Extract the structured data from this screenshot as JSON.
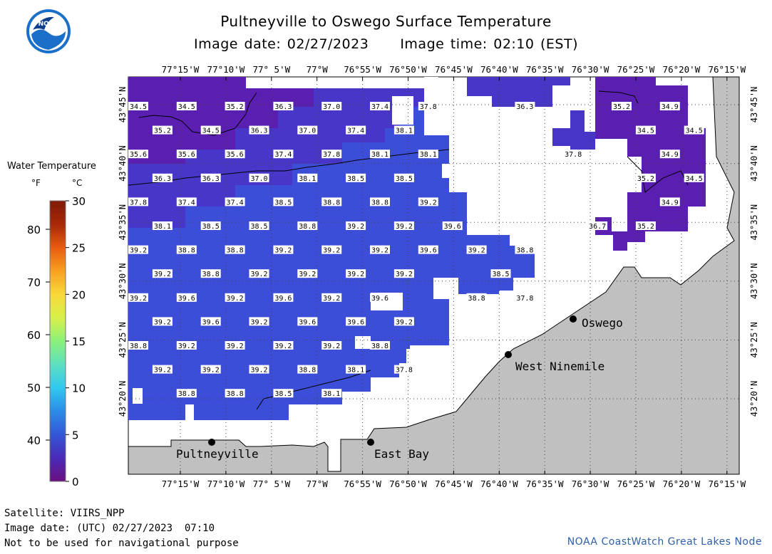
{
  "header": {
    "title": "Pultneyville to Oswego Surface Temperature",
    "image_date": "Image date: 02/27/2023",
    "image_time": "Image time: 02:10 (EST)"
  },
  "logo": {
    "text": "NOAA",
    "icon": "noaa-logo-icon"
  },
  "legend": {
    "title": "Water Temperature",
    "unit_f": "°F",
    "unit_c": "°C",
    "f_ticks": [
      "80",
      "70",
      "60",
      "50",
      "40"
    ],
    "c_ticks": [
      "30",
      "25",
      "20",
      "15",
      "10",
      "5",
      "0"
    ],
    "colors": [
      "#6a0f80",
      "#4a2bb8",
      "#3456d8",
      "#2a8ce8",
      "#30c8f0",
      "#5de0c0",
      "#8cf07a",
      "#d8f048",
      "#f8d838",
      "#f8a020",
      "#e85c10",
      "#a82808",
      "#801a08"
    ]
  },
  "map": {
    "lon_labels": [
      "77°15'W",
      "77°10'W",
      "77° 5'W",
      "77°W",
      "76°55'W",
      "76°50'W",
      "76°45'W",
      "76°40'W",
      "76°35'W",
      "76°30'W",
      "76°25'W",
      "76°20'W",
      "76°15'W"
    ],
    "lat_labels": [
      "43°45'N",
      "43°40'N",
      "43°35'N",
      "43°30'N",
      "43°25'N",
      "43°20'N"
    ],
    "colors": {
      "land": "#c0c0c0",
      "cold": "#5a1eb0",
      "mid": "#4736c8",
      "warm": "#3c4ed8"
    },
    "places": [
      {
        "name": "Oswego"
      },
      {
        "name": "West Ninemile"
      },
      {
        "name": "Pultneyville"
      },
      {
        "name": "East Bay"
      }
    ],
    "temps": [
      {
        "c": 0,
        "r": 0,
        "v": "34.5"
      },
      {
        "c": 1,
        "r": 0,
        "v": "34.5"
      },
      {
        "c": 2,
        "r": 0,
        "v": "35.2"
      },
      {
        "c": 3,
        "r": 0,
        "v": "36.3"
      },
      {
        "c": 4,
        "r": 0,
        "v": "37.0"
      },
      {
        "c": 5,
        "r": 0,
        "v": "37.4"
      },
      {
        "c": 6,
        "r": 0,
        "v": "37.8"
      },
      {
        "c": 8,
        "r": 0,
        "v": "36.3"
      },
      {
        "c": 10,
        "r": 0,
        "v": "35.2"
      },
      {
        "c": 11,
        "r": 0,
        "v": "34.9"
      },
      {
        "c": 0.5,
        "r": 1,
        "v": "35.2"
      },
      {
        "c": 1.5,
        "r": 1,
        "v": "34.5"
      },
      {
        "c": 2.5,
        "r": 1,
        "v": "36.3"
      },
      {
        "c": 3.5,
        "r": 1,
        "v": "37.0"
      },
      {
        "c": 4.5,
        "r": 1,
        "v": "37.4"
      },
      {
        "c": 5.5,
        "r": 1,
        "v": "38.1"
      },
      {
        "c": 10.5,
        "r": 1,
        "v": "34.5"
      },
      {
        "c": 11.5,
        "r": 1,
        "v": "34.5"
      },
      {
        "c": 0,
        "r": 2,
        "v": "35.6"
      },
      {
        "c": 1,
        "r": 2,
        "v": "35.6"
      },
      {
        "c": 2,
        "r": 2,
        "v": "35.6"
      },
      {
        "c": 3,
        "r": 2,
        "v": "37.4"
      },
      {
        "c": 4,
        "r": 2,
        "v": "37.8"
      },
      {
        "c": 5,
        "r": 2,
        "v": "38.1"
      },
      {
        "c": 6,
        "r": 2,
        "v": "38.1"
      },
      {
        "c": 9,
        "r": 2,
        "v": "37.8"
      },
      {
        "c": 11,
        "r": 2,
        "v": "34.9"
      },
      {
        "c": 0.5,
        "r": 3,
        "v": "36.3"
      },
      {
        "c": 1.5,
        "r": 3,
        "v": "36.3"
      },
      {
        "c": 2.5,
        "r": 3,
        "v": "37.0"
      },
      {
        "c": 3.5,
        "r": 3,
        "v": "38.1"
      },
      {
        "c": 4.5,
        "r": 3,
        "v": "38.5"
      },
      {
        "c": 5.5,
        "r": 3,
        "v": "38.5"
      },
      {
        "c": 10.5,
        "r": 3,
        "v": "35.2"
      },
      {
        "c": 11.5,
        "r": 3,
        "v": "34.5"
      },
      {
        "c": 0,
        "r": 4,
        "v": "37.8"
      },
      {
        "c": 1,
        "r": 4,
        "v": "37.4"
      },
      {
        "c": 2,
        "r": 4,
        "v": "37.4"
      },
      {
        "c": 3,
        "r": 4,
        "v": "38.5"
      },
      {
        "c": 4,
        "r": 4,
        "v": "38.8"
      },
      {
        "c": 5,
        "r": 4,
        "v": "38.8"
      },
      {
        "c": 6,
        "r": 4,
        "v": "39.2"
      },
      {
        "c": 11,
        "r": 4,
        "v": "34.9"
      },
      {
        "c": 0.5,
        "r": 5,
        "v": "38.1"
      },
      {
        "c": 1.5,
        "r": 5,
        "v": "38.5"
      },
      {
        "c": 2.5,
        "r": 5,
        "v": "38.5"
      },
      {
        "c": 3.5,
        "r": 5,
        "v": "38.8"
      },
      {
        "c": 4.5,
        "r": 5,
        "v": "39.2"
      },
      {
        "c": 5.5,
        "r": 5,
        "v": "39.2"
      },
      {
        "c": 6.5,
        "r": 5,
        "v": "39.6"
      },
      {
        "c": 9.5,
        "r": 5,
        "v": "36.7"
      },
      {
        "c": 10.5,
        "r": 5,
        "v": "35.2"
      },
      {
        "c": 0,
        "r": 6,
        "v": "39.2"
      },
      {
        "c": 1,
        "r": 6,
        "v": "38.8"
      },
      {
        "c": 2,
        "r": 6,
        "v": "38.8"
      },
      {
        "c": 3,
        "r": 6,
        "v": "39.2"
      },
      {
        "c": 4,
        "r": 6,
        "v": "39.2"
      },
      {
        "c": 5,
        "r": 6,
        "v": "39.2"
      },
      {
        "c": 6,
        "r": 6,
        "v": "39.6"
      },
      {
        "c": 7,
        "r": 6,
        "v": "39.2"
      },
      {
        "c": 8,
        "r": 6,
        "v": "38.8"
      },
      {
        "c": 0.5,
        "r": 7,
        "v": "39.2"
      },
      {
        "c": 1.5,
        "r": 7,
        "v": "38.8"
      },
      {
        "c": 2.5,
        "r": 7,
        "v": "39.2"
      },
      {
        "c": 3.5,
        "r": 7,
        "v": "39.2"
      },
      {
        "c": 4.5,
        "r": 7,
        "v": "39.2"
      },
      {
        "c": 5.5,
        "r": 7,
        "v": "39.2"
      },
      {
        "c": 7.5,
        "r": 7,
        "v": "38.5"
      },
      {
        "c": 0,
        "r": 8,
        "v": "39.2"
      },
      {
        "c": 1,
        "r": 8,
        "v": "39.6"
      },
      {
        "c": 2,
        "r": 8,
        "v": "39.2"
      },
      {
        "c": 3,
        "r": 8,
        "v": "39.6"
      },
      {
        "c": 4,
        "r": 8,
        "v": "39.2"
      },
      {
        "c": 5,
        "r": 8,
        "v": "39.6"
      },
      {
        "c": 7,
        "r": 8,
        "v": "38.8"
      },
      {
        "c": 8,
        "r": 8,
        "v": "37.8"
      },
      {
        "c": 0.5,
        "r": 9,
        "v": "39.2"
      },
      {
        "c": 1.5,
        "r": 9,
        "v": "39.6"
      },
      {
        "c": 2.5,
        "r": 9,
        "v": "39.2"
      },
      {
        "c": 3.5,
        "r": 9,
        "v": "39.6"
      },
      {
        "c": 4.5,
        "r": 9,
        "v": "39.6"
      },
      {
        "c": 5.5,
        "r": 9,
        "v": "39.2"
      },
      {
        "c": 0,
        "r": 10,
        "v": "38.8"
      },
      {
        "c": 1,
        "r": 10,
        "v": "39.2"
      },
      {
        "c": 2,
        "r": 10,
        "v": "39.2"
      },
      {
        "c": 3,
        "r": 10,
        "v": "39.2"
      },
      {
        "c": 4,
        "r": 10,
        "v": "39.2"
      },
      {
        "c": 5,
        "r": 10,
        "v": "38.8"
      },
      {
        "c": 0.5,
        "r": 11,
        "v": "39.2"
      },
      {
        "c": 1.5,
        "r": 11,
        "v": "39.2"
      },
      {
        "c": 2.5,
        "r": 11,
        "v": "39.2"
      },
      {
        "c": 3.5,
        "r": 11,
        "v": "38.8"
      },
      {
        "c": 4.5,
        "r": 11,
        "v": "38.1"
      },
      {
        "c": 5.5,
        "r": 11,
        "v": "37.8"
      },
      {
        "c": 1,
        "r": 12,
        "v": "38.8"
      },
      {
        "c": 2,
        "r": 12,
        "v": "38.8"
      },
      {
        "c": 3,
        "r": 12,
        "v": "38.5"
      },
      {
        "c": 4,
        "r": 12,
        "v": "38.1"
      }
    ]
  },
  "footer": {
    "satellite": "Satellite: VIIRS_NPP",
    "utc_date": "Image date: (UTC) 02/27/2023  07:10",
    "disclaimer": "Not to be used for navigational purpose",
    "credit": "NOAA CoastWatch Great Lakes Node"
  }
}
